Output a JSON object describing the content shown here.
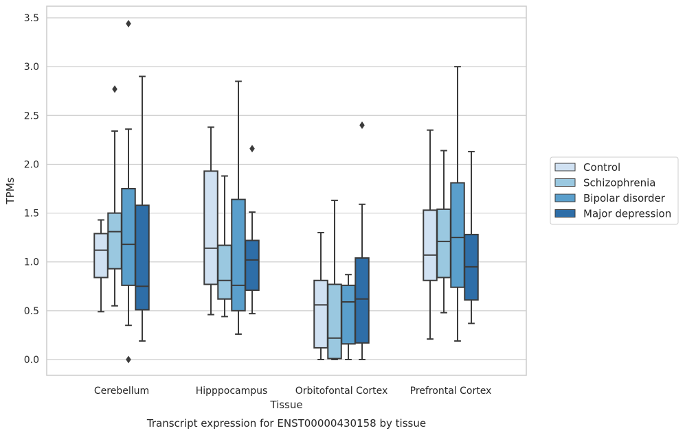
{
  "chart_data": {
    "type": "boxplot",
    "xlabel": "Tissue",
    "ylabel": "TPMs",
    "caption": "Transcript expression for ENST00000430158 by tissue",
    "ylim": [
      -0.17,
      3.62
    ],
    "yticks": [
      "0.0",
      "0.5",
      "1.0",
      "1.5",
      "2.0",
      "2.5",
      "3.0",
      "3.5"
    ],
    "grid": true,
    "legend_position": "right",
    "categories": [
      "Cerebellum",
      "Hipppocampus",
      "Orbitofontal Cortex",
      "Prefrontal Cortex"
    ],
    "series": [
      {
        "name": "Control",
        "color": "#d0e1f2",
        "boxes": [
          {
            "whisker_low": 0.49,
            "q1": 0.84,
            "median": 1.12,
            "q3": 1.29,
            "whisker_high": 1.43,
            "outliers": []
          },
          {
            "whisker_low": 0.46,
            "q1": 0.77,
            "median": 1.14,
            "q3": 1.93,
            "whisker_high": 2.38,
            "outliers": []
          },
          {
            "whisker_low": 0.0,
            "q1": 0.12,
            "median": 0.56,
            "q3": 0.81,
            "whisker_high": 1.3,
            "outliers": []
          },
          {
            "whisker_low": 0.21,
            "q1": 0.81,
            "median": 1.07,
            "q3": 1.53,
            "whisker_high": 2.35,
            "outliers": []
          }
        ]
      },
      {
        "name": "Schizophrenia",
        "color": "#9ac8e0",
        "boxes": [
          {
            "whisker_low": 0.55,
            "q1": 0.93,
            "median": 1.31,
            "q3": 1.5,
            "whisker_high": 2.34,
            "outliers": [
              2.77
            ]
          },
          {
            "whisker_low": 0.44,
            "q1": 0.62,
            "median": 0.81,
            "q3": 1.17,
            "whisker_high": 1.88,
            "outliers": []
          },
          {
            "whisker_low": 0.0,
            "q1": 0.01,
            "median": 0.22,
            "q3": 0.77,
            "whisker_high": 1.63,
            "outliers": []
          },
          {
            "whisker_low": 0.48,
            "q1": 0.84,
            "median": 1.21,
            "q3": 1.54,
            "whisker_high": 2.14,
            "outliers": []
          }
        ]
      },
      {
        "name": "Bipolar disorder",
        "color": "#5a9fcc",
        "boxes": [
          {
            "whisker_low": 0.35,
            "q1": 0.76,
            "median": 1.18,
            "q3": 1.75,
            "whisker_high": 2.36,
            "outliers": [
              0.0,
              3.44
            ]
          },
          {
            "whisker_low": 0.26,
            "q1": 0.5,
            "median": 0.76,
            "q3": 1.64,
            "whisker_high": 2.85,
            "outliers": []
          },
          {
            "whisker_low": 0.0,
            "q1": 0.16,
            "median": 0.59,
            "q3": 0.76,
            "whisker_high": 0.87,
            "outliers": []
          },
          {
            "whisker_low": 0.19,
            "q1": 0.74,
            "median": 1.25,
            "q3": 1.81,
            "whisker_high": 3.0,
            "outliers": []
          }
        ]
      },
      {
        "name": "Major depression",
        "color": "#2e6ea8",
        "boxes": [
          {
            "whisker_low": 0.19,
            "q1": 0.51,
            "median": 0.75,
            "q3": 1.58,
            "whisker_high": 2.9,
            "outliers": []
          },
          {
            "whisker_low": 0.47,
            "q1": 0.71,
            "median": 1.02,
            "q3": 1.22,
            "whisker_high": 1.51,
            "outliers": [
              2.16
            ]
          },
          {
            "whisker_low": 0.0,
            "q1": 0.17,
            "median": 0.62,
            "q3": 1.04,
            "whisker_high": 1.59,
            "outliers": [
              2.4
            ]
          },
          {
            "whisker_low": 0.37,
            "q1": 0.61,
            "median": 0.95,
            "q3": 1.28,
            "whisker_high": 2.13,
            "outliers": []
          }
        ]
      }
    ]
  }
}
